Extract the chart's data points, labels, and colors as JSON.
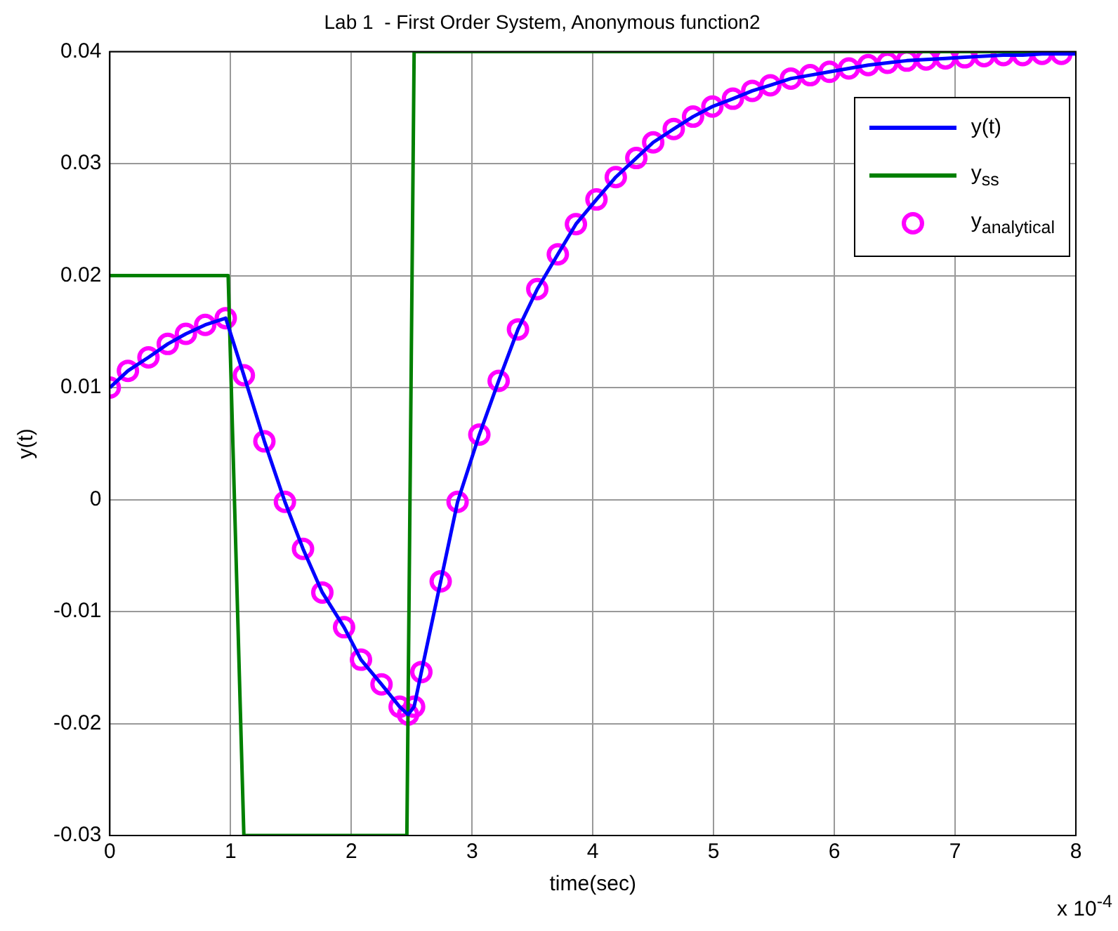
{
  "chart_data": {
    "type": "line",
    "title": "Lab 1  - First Order System, Anonymous function2",
    "xlabel": "time(sec)",
    "ylabel": "y(t)",
    "xlim": [
      0,
      8
    ],
    "xticks": [
      0,
      1,
      2,
      3,
      4,
      5,
      6,
      7,
      8
    ],
    "ylim": [
      -0.03,
      0.04
    ],
    "yticks": [
      -0.03,
      -0.02,
      -0.01,
      0,
      0.01,
      0.02,
      0.03,
      0.04
    ],
    "grid": true,
    "legend": "top right",
    "annotations": [
      "x 10$^{-4}$"
    ],
    "series": [
      {
        "name": "y(t)",
        "color": "#0000ff",
        "marker": "none",
        "x": [
          0,
          0.15,
          0.32,
          0.48,
          0.63,
          0.79,
          0.96,
          1.11,
          1.28,
          1.45,
          1.6,
          1.76,
          1.94,
          2.08,
          2.25,
          2.4,
          2.47,
          2.52,
          2.58,
          2.74,
          2.88,
          3.06,
          3.22,
          3.38,
          3.54,
          3.71,
          3.86,
          4.03,
          4.19,
          4.36,
          4.5,
          4.67,
          4.83,
          4.99,
          5.16,
          5.32,
          5.47,
          5.64,
          5.8,
          5.96,
          6.12,
          6.28,
          6.44,
          6.6,
          6.76,
          6.92,
          7.08,
          7.24,
          7.4,
          7.56,
          7.72,
          7.88,
          8
        ],
        "values": [
          0.01,
          0.0115,
          0.0127,
          0.0139,
          0.0148,
          0.0156,
          0.0162,
          0.0111,
          0.0052,
          -0.0002,
          -0.0044,
          -0.0083,
          -0.0114,
          -0.0143,
          -0.0165,
          -0.0185,
          -0.0192,
          -0.0185,
          -0.0154,
          -0.0073,
          -0.0002,
          0.0058,
          0.0106,
          0.0152,
          0.0188,
          0.0219,
          0.0246,
          0.0268,
          0.0288,
          0.0305,
          0.0319,
          0.0331,
          0.0342,
          0.0351,
          0.0358,
          0.0365,
          0.037,
          0.0376,
          0.0379,
          0.0382,
          0.0385,
          0.0388,
          0.039,
          0.0392,
          0.0393,
          0.0394,
          0.0395,
          0.0396,
          0.0397,
          0.0397,
          0.0398,
          0.0398,
          0.0398
        ]
      },
      {
        "name": "y$_{ss}$",
        "color": "#008000",
        "marker": "none",
        "x": [
          0,
          0.98,
          1.11,
          2.46,
          2.52,
          8
        ],
        "values": [
          0.02,
          0.02,
          -0.03,
          -0.03,
          0.04,
          0.04
        ]
      },
      {
        "name": "y$_{analytical}$",
        "type": "scatter",
        "color": "#ff00ff",
        "marker": "circle",
        "x": [
          0,
          0.15,
          0.32,
          0.48,
          0.63,
          0.79,
          0.96,
          1.11,
          1.28,
          1.45,
          1.6,
          1.76,
          1.94,
          2.08,
          2.25,
          2.4,
          2.47,
          2.52,
          2.58,
          2.74,
          2.88,
          3.06,
          3.22,
          3.38,
          3.54,
          3.71,
          3.86,
          4.03,
          4.19,
          4.36,
          4.5,
          4.67,
          4.83,
          4.99,
          5.16,
          5.32,
          5.47,
          5.64,
          5.8,
          5.96,
          6.12,
          6.28,
          6.44,
          6.6,
          6.76,
          6.92,
          7.08,
          7.24,
          7.4,
          7.56,
          7.72,
          7.88
        ],
        "values": [
          0.01,
          0.0115,
          0.0127,
          0.0139,
          0.0148,
          0.0156,
          0.0162,
          0.0111,
          0.0052,
          -0.0002,
          -0.0044,
          -0.0083,
          -0.0114,
          -0.0143,
          -0.0165,
          -0.0185,
          -0.0192,
          -0.0185,
          -0.0154,
          -0.0073,
          -0.0002,
          0.0058,
          0.0106,
          0.0152,
          0.0188,
          0.0219,
          0.0246,
          0.0268,
          0.0288,
          0.0305,
          0.0319,
          0.0331,
          0.0342,
          0.0351,
          0.0358,
          0.0365,
          0.037,
          0.0376,
          0.0379,
          0.0382,
          0.0385,
          0.0388,
          0.039,
          0.0392,
          0.0393,
          0.0394,
          0.0395,
          0.0396,
          0.0397,
          0.0397,
          0.0398,
          0.0398
        ]
      }
    ]
  }
}
